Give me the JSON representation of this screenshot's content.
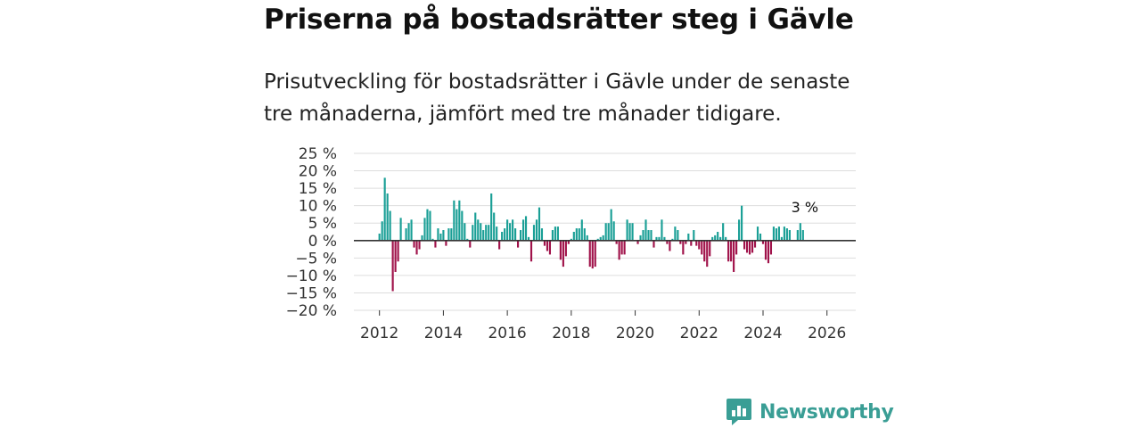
{
  "title": "Priserna på bostadsrätter steg i Gävle",
  "subtitle": "Prisutveckling för bostadsrätter i Gävle under de senaste tre månaderna, jämfört med tre månader tidigare.",
  "brand": "Newsworthy",
  "colors": {
    "positive": "#1a9f96",
    "negative": "#a0124a",
    "grid": "#dddddd",
    "zero": "#333333",
    "brand": "#3a9e95"
  },
  "chart_data": {
    "type": "bar",
    "title": "Priserna på bostadsrätter steg i Gävle",
    "xlabel": "",
    "ylabel": "",
    "ylim": [
      -20,
      25
    ],
    "yticks": [
      25,
      20,
      15,
      10,
      5,
      0,
      -5,
      -10,
      -15,
      -20
    ],
    "ytick_labels": [
      "25 %",
      "20 %",
      "15 %",
      "10 %",
      "5 %",
      "0 %",
      "−5 %",
      "−10 %",
      "−15 %",
      "−20 %"
    ],
    "xlim": [
      2011.2,
      2026.9
    ],
    "xticks": [
      2012,
      2014,
      2016,
      2018,
      2020,
      2022,
      2024,
      2026
    ],
    "xtick_labels": [
      "2012",
      "2014",
      "2016",
      "2018",
      "2020",
      "2022",
      "2024",
      "2026"
    ],
    "last_label": "3 %",
    "start": 2012.0,
    "step": 0.08333,
    "values": [
      2,
      5.5,
      18,
      13.5,
      8.5,
      -14.5,
      -9,
      -6,
      6.5,
      0,
      3.5,
      5,
      6,
      -2,
      -4,
      -2.5,
      1.5,
      6.5,
      9,
      8.5,
      0.5,
      -2,
      3.5,
      2,
      3,
      -1.5,
      3.5,
      3.5,
      11.5,
      9,
      11.5,
      8.5,
      5,
      0.5,
      -2,
      4.5,
      8,
      6,
      5,
      3,
      4.5,
      4.5,
      13.5,
      8,
      4,
      -2.5,
      2.5,
      3.5,
      6,
      5,
      6,
      3.5,
      -2,
      3,
      6,
      7,
      1,
      -6,
      4.5,
      6,
      9.5,
      3.5,
      -1.5,
      -3,
      -4,
      3,
      4,
      4,
      -5.5,
      -7.5,
      -4.5,
      -1,
      0.5,
      2.5,
      3.5,
      3.5,
      6,
      3.5,
      1.5,
      -7.5,
      -8,
      -7.5,
      0.5,
      1,
      1.5,
      5,
      5,
      9,
      5.5,
      -1,
      -5.5,
      -4,
      -4,
      6,
      5,
      5,
      0,
      -1,
      1.5,
      3,
      6,
      3,
      3,
      -2,
      1,
      1,
      6,
      1,
      -1,
      -3,
      0.5,
      4,
      3,
      -1,
      -4,
      -1,
      2,
      -1.5,
      3,
      -1.5,
      -2.5,
      -4,
      -6,
      -7.5,
      -4.5,
      1,
      1.5,
      2.5,
      1,
      5,
      1,
      -6,
      -6,
      -9,
      -4,
      6,
      10,
      -2.5,
      -3.5,
      -4,
      -3.5,
      -2,
      4,
      2,
      -1,
      -5.5,
      -6.5,
      -4,
      4,
      3.5,
      4,
      1,
      4,
      3.5,
      3,
      0,
      0,
      3,
      5,
      3
    ]
  }
}
